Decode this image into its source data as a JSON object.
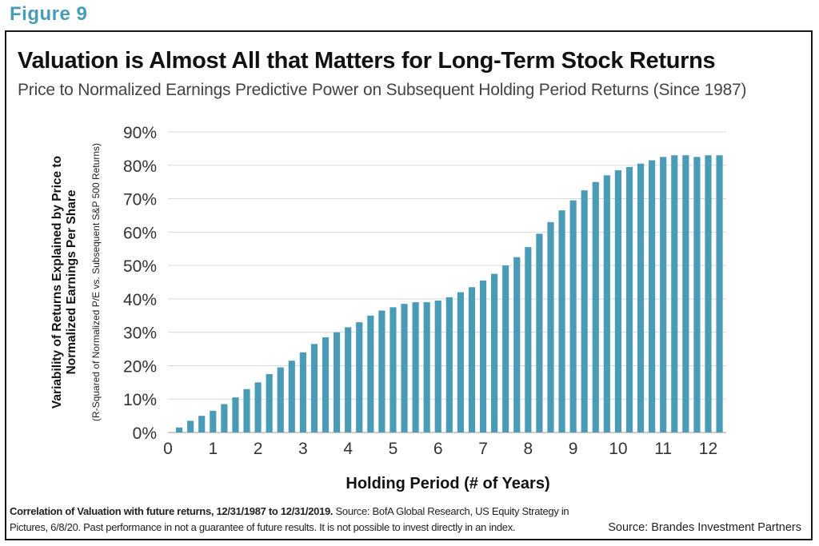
{
  "figure_label": "Figure 9",
  "footnote": {
    "bold": "Correlation of Valuation with future returns, 12/31/1987 to 12/31/2019.",
    "text": " Source: BofA Global Research, US Equity Strategy in Pictures, 6/8/20. Past performance in not a guarantee of future results. It is not possible to invest directly in an index."
  },
  "source": "Source: Brandes Investment Partners",
  "colors": {
    "bar": "#4a9bb5",
    "accent": "#4a9bb5",
    "grid": "#d9d9d9"
  },
  "chart_data": {
    "type": "bar",
    "title": "Valuation is Almost All that Matters for Long-Term Stock Returns",
    "subtitle": "Price to Normalized Earnings Predictive Power on Subsequent Holding Period Returns (Since 1987)",
    "xlabel": "Holding Period (# of Years)",
    "ylabel": "Variability of Returns Explained by Price to Normalized Earnings Per Share",
    "ylabel_note": "(R-Squared of Normalized P/E vs. Subsequent S&P 500 Returns)",
    "xlim": [
      0,
      12.4
    ],
    "ylim": [
      0,
      90
    ],
    "yticks": [
      "0%",
      "10%",
      "20%",
      "30%",
      "40%",
      "50%",
      "60%",
      "70%",
      "80%",
      "90%"
    ],
    "xticks": [
      "0",
      "1",
      "2",
      "3",
      "4",
      "5",
      "6",
      "7",
      "8",
      "9",
      "10",
      "11",
      "12"
    ],
    "grid": true,
    "x": [
      0.25,
      0.5,
      0.75,
      1.0,
      1.25,
      1.5,
      1.75,
      2.0,
      2.25,
      2.5,
      2.75,
      3.0,
      3.25,
      3.5,
      3.75,
      4.0,
      4.25,
      4.5,
      4.75,
      5.0,
      5.25,
      5.5,
      5.75,
      6.0,
      6.25,
      6.5,
      6.75,
      7.0,
      7.25,
      7.5,
      7.75,
      8.0,
      8.25,
      8.5,
      8.75,
      9.0,
      9.25,
      9.5,
      9.75,
      10.0,
      10.25,
      10.5,
      10.75,
      11.0,
      11.25,
      11.5,
      11.75,
      12.0,
      12.25
    ],
    "values": [
      1.5,
      3.5,
      5.0,
      6.5,
      8.5,
      10.5,
      13.0,
      15.0,
      17.5,
      19.5,
      21.5,
      24.0,
      26.5,
      28.5,
      30.0,
      31.5,
      33.0,
      35.0,
      36.5,
      37.5,
      38.5,
      39.0,
      39.0,
      39.5,
      40.5,
      42.0,
      43.5,
      45.5,
      47.5,
      50.0,
      52.5,
      55.5,
      59.5,
      63.0,
      66.5,
      69.5,
      72.5,
      75.0,
      77.0,
      78.5,
      79.5,
      80.5,
      81.5,
      82.5,
      83.0,
      83.0,
      82.5,
      83.0,
      83.0
    ]
  }
}
